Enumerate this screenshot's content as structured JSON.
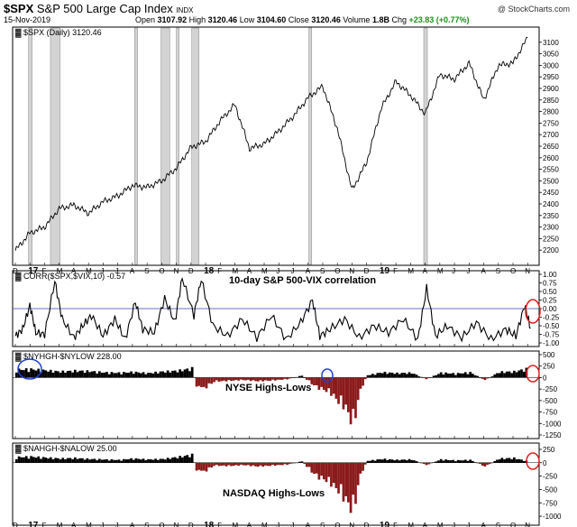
{
  "header": {
    "symbol": "$SPX",
    "name": "S&P 500 Large Cap Index",
    "exchange": "INDX",
    "date": "15-Nov-2019",
    "open_label": "Open",
    "open": "3107.92",
    "high_label": "High",
    "high": "3120.46",
    "low_label": "Low",
    "low": "3104.60",
    "close_label": "Close",
    "close": "3120.46",
    "volume_label": "Volume",
    "volume": "1.8B",
    "chg_label": "Chg",
    "chg": "+23.83 (+0.77%)",
    "brand": "@ StockCharts.com"
  },
  "chart_data": [
    {
      "type": "line",
      "legend": "$SPX (Daily) 3120.46",
      "ylim": [
        2150,
        3150
      ],
      "yticks": [
        "2200",
        "2250",
        "2300",
        "2350",
        "2400",
        "2450",
        "2500",
        "2550",
        "2600",
        "2650",
        "2700",
        "2750",
        "2800",
        "2850",
        "2900",
        "2950",
        "3000",
        "3050",
        "3100"
      ],
      "y_axis_position": "right",
      "grid": false,
      "x": [
        0,
        1,
        2,
        3,
        4,
        5,
        6,
        7,
        8,
        9,
        10,
        11,
        12,
        13,
        14,
        15,
        16,
        17,
        18,
        19,
        20,
        21,
        22,
        23,
        24,
        25,
        26,
        27,
        28,
        29,
        30,
        31,
        32,
        33,
        34,
        35
      ],
      "values": [
        2198,
        2275,
        2300,
        2380,
        2395,
        2360,
        2410,
        2435,
        2480,
        2472,
        2500,
        2555,
        2645,
        2670,
        2760,
        2830,
        2640,
        2660,
        2715,
        2780,
        2860,
        2910,
        2725,
        2460,
        2580,
        2815,
        2930,
        2870,
        2790,
        2960,
        2940,
        3010,
        2850,
        3000,
        3010,
        3120
      ],
      "shaded_ranges_months": [
        [
          0.9,
          1.15
        ],
        [
          2.4,
          3.05
        ],
        [
          8.15,
          8.35
        ],
        [
          9.95,
          10.55
        ],
        [
          11.0,
          11.15
        ],
        [
          12.05,
          12.55
        ],
        [
          20.05,
          20.25
        ],
        [
          27.9,
          28.15
        ]
      ]
    },
    {
      "type": "line",
      "legend": "CORR($SPX,$VIX,10) -0.57",
      "annotation": "10-day S&P 500-VIX correlation",
      "ylim": [
        -1.0,
        1.0
      ],
      "yticks": [
        "1.00",
        "0.75",
        "0.50",
        "0.25",
        "0.00",
        "-0.25",
        "-0.50",
        "-0.75",
        "-1.00"
      ],
      "reference_line": 0,
      "x": [
        0,
        0.5,
        1,
        1.4,
        2,
        2.7,
        3.2,
        4,
        4.6,
        5.2,
        6,
        6.8,
        7.5,
        8.2,
        8.7,
        9.5,
        10.2,
        10.9,
        11.4,
        12.2,
        12.7,
        13.5,
        14.5,
        15.5,
        16.5,
        17.5,
        18.5,
        19.5,
        20.3,
        20.8,
        21.5,
        22.5,
        23.5,
        24.5,
        25.5,
        26.5,
        27.5,
        28.1,
        28.7,
        29.5,
        30.5,
        31.5,
        32.5,
        33.5,
        34.2,
        34.8,
        35.2
      ],
      "values": [
        -0.8,
        -0.6,
        0.1,
        -0.7,
        -0.75,
        0.8,
        -0.3,
        -0.85,
        -0.5,
        -0.2,
        -0.8,
        -0.3,
        -0.9,
        0.2,
        -0.6,
        -0.7,
        0.3,
        -0.4,
        0.9,
        -0.2,
        0.85,
        -0.5,
        -0.8,
        -0.3,
        -0.85,
        -0.2,
        -0.9,
        -0.4,
        0.25,
        -0.8,
        -0.6,
        -0.3,
        -0.85,
        -0.5,
        -0.7,
        -0.3,
        -0.9,
        0.6,
        -0.8,
        -0.5,
        -0.85,
        -0.4,
        -0.9,
        -0.6,
        -0.8,
        0.1,
        -0.57
      ]
    },
    {
      "type": "bar",
      "legend": "$NYHGH-$NYLOW 228.00",
      "annotation": "NYSE Highs-Lows",
      "ylim": [
        -1250,
        500
      ],
      "yticks": [
        "500",
        "250",
        "0",
        "-250",
        "-500",
        "-750",
        "-1000",
        "-1250"
      ],
      "x": [
        0,
        1,
        2,
        3,
        4,
        5,
        6,
        7,
        8,
        9,
        10,
        11,
        12,
        12.3,
        12.8,
        13.5,
        14.5,
        15.5,
        16.5,
        17.5,
        18.5,
        19.5,
        20.5,
        21,
        21.5,
        22,
        22.5,
        23,
        23.5,
        24,
        25,
        26,
        27,
        28,
        29,
        30,
        31,
        32,
        33,
        34,
        35
      ],
      "values": [
        200,
        210,
        180,
        150,
        170,
        160,
        130,
        120,
        140,
        110,
        150,
        170,
        230,
        -200,
        -280,
        -100,
        -80,
        -60,
        -90,
        -70,
        -40,
        50,
        -250,
        -300,
        -400,
        -600,
        -750,
        -1200,
        -300,
        60,
        130,
        110,
        120,
        -40,
        120,
        100,
        130,
        -60,
        140,
        150,
        228
      ]
    },
    {
      "type": "bar",
      "legend": "$NAHGH-$NALOW 25.00",
      "annotation": "NASDAQ Highs-Lows",
      "ylim": [
        -1100,
        300
      ],
      "yticks": [
        "250",
        "0",
        "-250",
        "-500",
        "-750",
        "-1000"
      ],
      "x": [
        0,
        1,
        2,
        3,
        4,
        5,
        6,
        7,
        8,
        9,
        10,
        11,
        12,
        12.3,
        12.8,
        13.5,
        14.5,
        15.5,
        16.5,
        17.5,
        18.5,
        19.5,
        20.5,
        21,
        21.5,
        22,
        22.5,
        23,
        23.5,
        24,
        25,
        26,
        27,
        28,
        29,
        30,
        31,
        32,
        33,
        34,
        35
      ],
      "values": [
        120,
        130,
        110,
        90,
        100,
        80,
        70,
        60,
        90,
        70,
        80,
        120,
        170,
        -150,
        -200,
        -60,
        -70,
        -50,
        -80,
        -60,
        -40,
        30,
        -300,
        -350,
        -450,
        -600,
        -800,
        -1050,
        -250,
        40,
        80,
        60,
        70,
        -50,
        70,
        50,
        60,
        -80,
        90,
        100,
        25
      ]
    }
  ],
  "x_axis": {
    "labels": [
      "D",
      "17",
      "F",
      "M",
      "A",
      "M",
      "J",
      "J",
      "A",
      "S",
      "O",
      "N",
      "D",
      "18",
      "F",
      "M",
      "A",
      "M",
      "J",
      "J",
      "A",
      "S",
      "O",
      "N",
      "D",
      "19",
      "F",
      "M",
      "A",
      "M",
      "J",
      "J",
      "A",
      "S",
      "O",
      "N"
    ],
    "bold_years": [
      "17",
      "18",
      "19"
    ]
  }
}
